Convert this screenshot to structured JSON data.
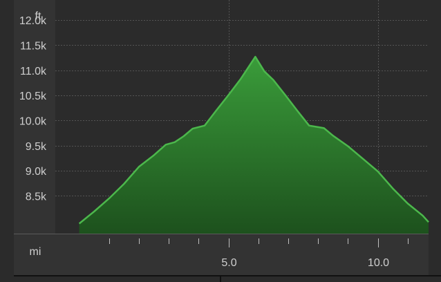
{
  "chart_data": {
    "type": "area",
    "title": "",
    "xlabel": "mi",
    "ylabel": "ft",
    "xlim": [
      -0.8,
      11.7
    ],
    "ylim": [
      7750,
      12400
    ],
    "x_ticks": [
      5.0,
      10.0
    ],
    "x_tick_labels": [
      "5.0",
      "10.0"
    ],
    "x_minor_ticks": [
      1.0,
      2.0,
      3.0,
      4.0,
      6.0,
      7.0,
      8.0,
      9.0,
      11.0
    ],
    "y_ticks": [
      8500,
      9000,
      9500,
      10000,
      10500,
      11000,
      11500,
      12000
    ],
    "y_tick_labels": [
      "8.5k",
      "9.0k",
      "9.5k",
      "10.0k",
      "10.5k",
      "11.0k",
      "11.5k",
      "12.0k"
    ],
    "grid": true,
    "series": [
      {
        "name": "",
        "x": [
          0.0,
          0.5,
          1.0,
          1.5,
          2.0,
          2.5,
          2.9,
          3.2,
          3.5,
          3.8,
          4.2,
          4.6,
          5.0,
          5.4,
          5.9,
          6.2,
          6.5,
          6.9,
          7.3,
          7.7,
          8.0,
          8.2,
          8.5,
          9.0,
          9.5,
          10.0,
          10.5,
          11.0,
          11.5,
          11.7
        ],
        "y": [
          7950,
          8190,
          8450,
          8740,
          9080,
          9310,
          9520,
          9570,
          9690,
          9840,
          9900,
          10210,
          10510,
          10820,
          11270,
          10980,
          10810,
          10510,
          10200,
          9900,
          9870,
          9850,
          9700,
          9490,
          9240,
          8990,
          8650,
          8350,
          8110,
          7980
        ],
        "color": "#3fa53f"
      }
    ],
    "colors": {
      "background": "#2b2b2b",
      "axis_band": "#333333",
      "fill_top": "#3a9c3a",
      "fill_bottom": "#1d511d",
      "stroke": "#4cb84c",
      "grid": "#555555",
      "text": "#cfcfcf"
    }
  }
}
